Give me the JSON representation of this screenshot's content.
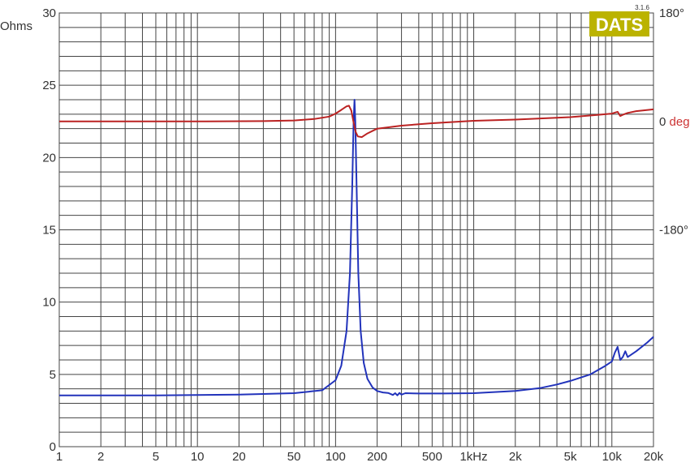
{
  "chart_data": {
    "type": "line",
    "x_scale": "log",
    "xlim": [
      1,
      20000
    ],
    "x_tick_labels": [
      {
        "x": 1,
        "label": "1"
      },
      {
        "x": 2,
        "label": "2"
      },
      {
        "x": 5,
        "label": "5"
      },
      {
        "x": 10,
        "label": "10"
      },
      {
        "x": 20,
        "label": "20"
      },
      {
        "x": 50,
        "label": "50"
      },
      {
        "x": 100,
        "label": "100"
      },
      {
        "x": 200,
        "label": "200"
      },
      {
        "x": 500,
        "label": "500"
      },
      {
        "x": 1000,
        "label": "1kHz"
      },
      {
        "x": 2000,
        "label": "2k"
      },
      {
        "x": 5000,
        "label": "5k"
      },
      {
        "x": 10000,
        "label": "10k"
      },
      {
        "x": 20000,
        "label": "20k"
      }
    ],
    "y_left": {
      "label": "Ohms",
      "color": "#3333bb",
      "ylim": [
        0,
        30
      ],
      "ticks": [
        0,
        5,
        10,
        15,
        20,
        25,
        30
      ]
    },
    "y_right": {
      "color": "#333333",
      "ylim": [
        -540,
        180
      ],
      "ticks": [
        {
          "value": 180,
          "label": "180°"
        },
        {
          "value": 0,
          "label": "0",
          "unit": "deg",
          "unit_color": "#cc3333"
        },
        {
          "value": -180,
          "label": "-180°"
        }
      ]
    },
    "grid": true,
    "series": [
      {
        "axis": "left",
        "color": "#2233bb",
        "points": [
          [
            1,
            3.55
          ],
          [
            5,
            3.55
          ],
          [
            20,
            3.6
          ],
          [
            50,
            3.7
          ],
          [
            80,
            3.9
          ],
          [
            100,
            4.6
          ],
          [
            110,
            5.6
          ],
          [
            120,
            8.0
          ],
          [
            127,
            12.0
          ],
          [
            132,
            18.0
          ],
          [
            135,
            22.5
          ],
          [
            137,
            24.0
          ],
          [
            139,
            22.5
          ],
          [
            142,
            18.0
          ],
          [
            146,
            12.0
          ],
          [
            152,
            8.0
          ],
          [
            160,
            5.8
          ],
          [
            170,
            4.7
          ],
          [
            185,
            4.1
          ],
          [
            200,
            3.85
          ],
          [
            220,
            3.75
          ],
          [
            240,
            3.72
          ],
          [
            250,
            3.65
          ],
          [
            260,
            3.58
          ],
          [
            270,
            3.7
          ],
          [
            280,
            3.55
          ],
          [
            290,
            3.72
          ],
          [
            300,
            3.6
          ],
          [
            320,
            3.7
          ],
          [
            400,
            3.68
          ],
          [
            600,
            3.68
          ],
          [
            1000,
            3.7
          ],
          [
            2000,
            3.85
          ],
          [
            3000,
            4.05
          ],
          [
            4000,
            4.3
          ],
          [
            5000,
            4.55
          ],
          [
            7000,
            5.0
          ],
          [
            9000,
            5.6
          ],
          [
            10000,
            5.9
          ],
          [
            10500,
            6.5
          ],
          [
            11000,
            6.9
          ],
          [
            11500,
            6.0
          ],
          [
            12000,
            6.2
          ],
          [
            12500,
            6.6
          ],
          [
            13000,
            6.2
          ],
          [
            15000,
            6.6
          ],
          [
            18000,
            7.2
          ],
          [
            20000,
            7.6
          ]
        ]
      },
      {
        "axis": "right",
        "color": "#bb2222",
        "points": [
          [
            1,
            0
          ],
          [
            10,
            0
          ],
          [
            30,
            0.5
          ],
          [
            50,
            1.5
          ],
          [
            70,
            4
          ],
          [
            90,
            8
          ],
          [
            100,
            13
          ],
          [
            110,
            19
          ],
          [
            120,
            25
          ],
          [
            125,
            26
          ],
          [
            130,
            18
          ],
          [
            135,
            -2
          ],
          [
            140,
            -18
          ],
          [
            145,
            -25
          ],
          [
            155,
            -26
          ],
          [
            170,
            -20
          ],
          [
            200,
            -12
          ],
          [
            300,
            -7
          ],
          [
            500,
            -3
          ],
          [
            1000,
            1
          ],
          [
            2000,
            3
          ],
          [
            5000,
            7
          ],
          [
            8000,
            11
          ],
          [
            10000,
            13
          ],
          [
            11000,
            16
          ],
          [
            11500,
            9
          ],
          [
            12000,
            11
          ],
          [
            13000,
            14
          ],
          [
            15000,
            17
          ],
          [
            20000,
            20
          ]
        ]
      }
    ]
  },
  "logo": {
    "text": "DATS",
    "version": "3.1.6",
    "bg_color": "#bbb300"
  }
}
